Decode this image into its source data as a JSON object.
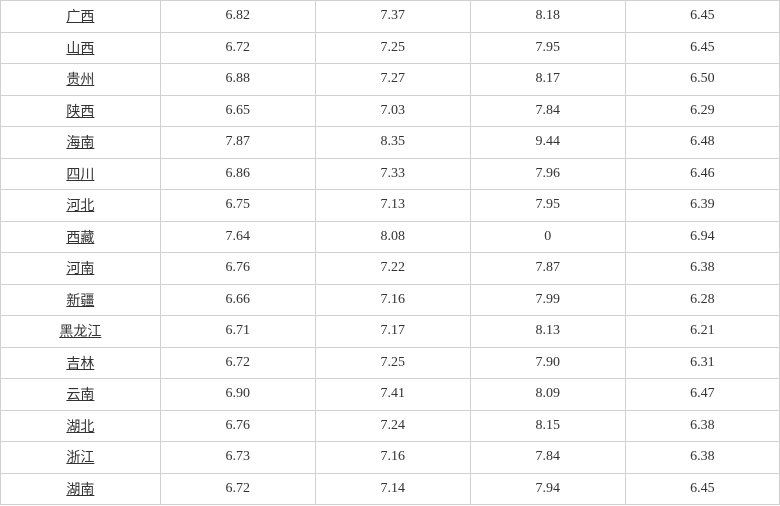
{
  "table": {
    "type": "table",
    "border_color": "#d0d0d0",
    "background_color": "#ffffff",
    "text_color": "#333333",
    "font_size": 14,
    "row_height": 31.5,
    "column_widths_pct": [
      20.5,
      19.9,
      19.9,
      19.9,
      19.8
    ],
    "province_underline": true,
    "rows": [
      {
        "province": "广西",
        "v1": "6.82",
        "v2": "7.37",
        "v3": "8.18",
        "v4": "6.45"
      },
      {
        "province": "山西",
        "v1": "6.72",
        "v2": "7.25",
        "v3": "7.95",
        "v4": "6.45"
      },
      {
        "province": "贵州",
        "v1": "6.88",
        "v2": "7.27",
        "v3": "8.17",
        "v4": "6.50"
      },
      {
        "province": "陕西",
        "v1": "6.65",
        "v2": "7.03",
        "v3": "7.84",
        "v4": "6.29"
      },
      {
        "province": "海南",
        "v1": "7.87",
        "v2": "8.35",
        "v3": "9.44",
        "v4": "6.48"
      },
      {
        "province": "四川",
        "v1": "6.86",
        "v2": "7.33",
        "v3": "7.96",
        "v4": "6.46"
      },
      {
        "province": "河北",
        "v1": "6.75",
        "v2": "7.13",
        "v3": "7.95",
        "v4": "6.39"
      },
      {
        "province": "西藏",
        "v1": "7.64",
        "v2": "8.08",
        "v3": "0",
        "v4": "6.94"
      },
      {
        "province": "河南",
        "v1": "6.76",
        "v2": "7.22",
        "v3": "7.87",
        "v4": "6.38"
      },
      {
        "province": "新疆",
        "v1": "6.66",
        "v2": "7.16",
        "v3": "7.99",
        "v4": "6.28"
      },
      {
        "province": "黑龙江",
        "v1": "6.71",
        "v2": "7.17",
        "v3": "8.13",
        "v4": "6.21"
      },
      {
        "province": "吉林",
        "v1": "6.72",
        "v2": "7.25",
        "v3": "7.90",
        "v4": "6.31"
      },
      {
        "province": "云南",
        "v1": "6.90",
        "v2": "7.41",
        "v3": "8.09",
        "v4": "6.47"
      },
      {
        "province": "湖北",
        "v1": "6.76",
        "v2": "7.24",
        "v3": "8.15",
        "v4": "6.38"
      },
      {
        "province": "浙江",
        "v1": "6.73",
        "v2": "7.16",
        "v3": "7.84",
        "v4": "6.38"
      },
      {
        "province": "湖南",
        "v1": "6.72",
        "v2": "7.14",
        "v3": "7.94",
        "v4": "6.45"
      }
    ]
  }
}
